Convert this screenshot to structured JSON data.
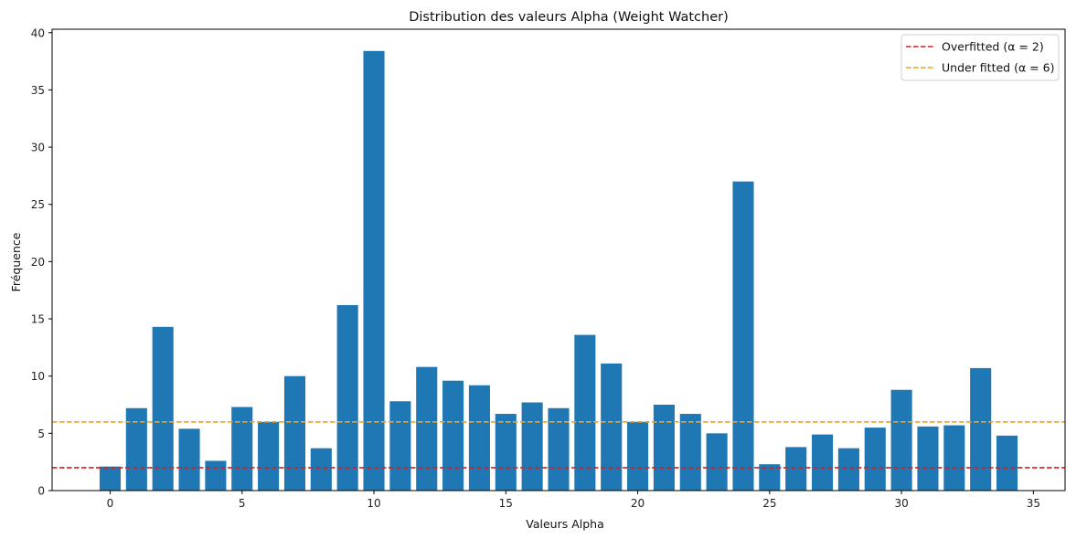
{
  "chart_data": {
    "type": "bar",
    "title": "Distribution des valeurs Alpha (Weight Watcher)",
    "xlabel": "Valeurs Alpha",
    "ylabel": "Fréquence",
    "xlim": [
      -2.2,
      36.2
    ],
    "ylim": [
      0,
      40.3
    ],
    "xticks": [
      0,
      5,
      10,
      15,
      20,
      25,
      30,
      35
    ],
    "yticks": [
      0,
      5,
      10,
      15,
      20,
      25,
      30,
      35,
      40
    ],
    "x": [
      0,
      1,
      2,
      3,
      4,
      5,
      6,
      7,
      8,
      9,
      10,
      11,
      12,
      13,
      14,
      15,
      16,
      17,
      18,
      19,
      20,
      21,
      22,
      23,
      24,
      25,
      26,
      27,
      28,
      29,
      30,
      31,
      32,
      33,
      34
    ],
    "values": [
      2.1,
      7.2,
      14.3,
      5.4,
      2.6,
      7.3,
      6.0,
      10.0,
      3.7,
      16.2,
      38.4,
      7.8,
      10.8,
      9.6,
      9.2,
      6.7,
      7.7,
      7.2,
      13.6,
      11.1,
      6.0,
      7.5,
      6.7,
      5.0,
      27.0,
      2.3,
      3.8,
      4.9,
      3.7,
      5.5,
      8.8,
      5.6,
      5.7,
      10.7,
      4.8
    ],
    "bar_color": "#1f77b4",
    "grid": false,
    "legend_position": "top-right",
    "reference_lines": [
      {
        "label": "Overfitted (α = 2)",
        "y": 2,
        "color": "#e41a1c",
        "style": "dashed"
      },
      {
        "label": "Under fitted (α = 6)",
        "y": 6,
        "color": "#ff9f0a",
        "style": "dashed"
      }
    ]
  }
}
